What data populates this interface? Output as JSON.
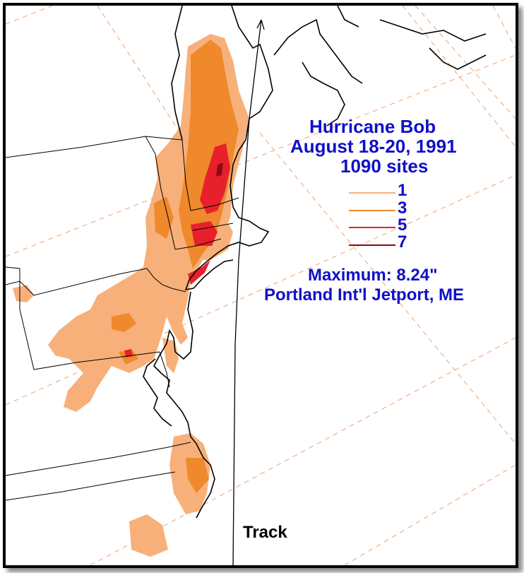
{
  "title": {
    "line1": "Hurricane Bob",
    "line2": "August 18-20, 1991",
    "line3": "1090 sites"
  },
  "legend": [
    {
      "label": "1",
      "color": "#f7b07a"
    },
    {
      "label": "3",
      "color": "#f0882c"
    },
    {
      "label": "5",
      "color": "#e8202c"
    },
    {
      "label": "7",
      "color": "#8a0c10"
    }
  ],
  "maximum": {
    "line1": "Maximum: 8.24\"",
    "line2": "Portland Int'l Jetport, ME"
  },
  "track_label": "Track",
  "colors": {
    "text": "#1010c8",
    "rain_1": "#f7b07a",
    "rain_3": "#f0882c",
    "rain_5": "#e8202c",
    "rain_7": "#8a0c10",
    "grid": "#f0a070"
  }
}
